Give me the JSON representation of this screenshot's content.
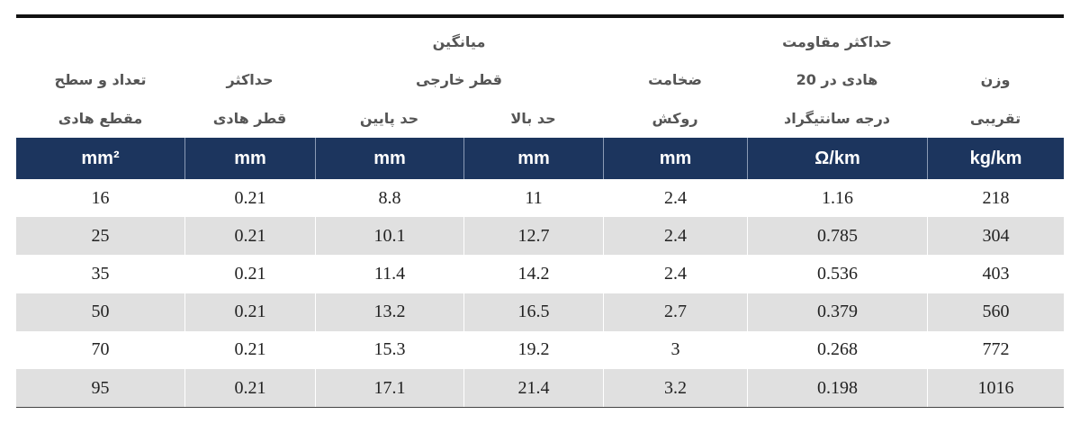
{
  "table": {
    "group": {
      "title": "میانگین",
      "subtitle": "قطر خارجی"
    },
    "columns": [
      {
        "lines": [
          "تعداد و سطح",
          "مقطع هادی"
        ]
      },
      {
        "lines": [
          "حداکثر",
          "قطر هادی"
        ]
      },
      {
        "lines": [
          "حد پایین"
        ]
      },
      {
        "lines": [
          "حد بالا"
        ]
      },
      {
        "lines": [
          "ضخامت",
          "روکش"
        ]
      },
      {
        "lines": [
          "حداکثر مقاومت",
          "هادی در 20",
          "درجه سانتیگراد"
        ]
      },
      {
        "lines": [
          "وزن",
          "تقریبی"
        ]
      }
    ],
    "units": [
      "mm²",
      "mm",
      "mm",
      "mm",
      "mm",
      "Ω/km",
      "kg/km"
    ],
    "rows": [
      [
        16,
        0.21,
        8.8,
        11,
        2.4,
        1.16,
        218
      ],
      [
        25,
        0.21,
        10.1,
        12.7,
        2.4,
        0.785,
        304
      ],
      [
        35,
        0.21,
        11.4,
        14.2,
        2.4,
        0.536,
        403
      ],
      [
        50,
        0.21,
        13.2,
        16.5,
        2.7,
        0.379,
        560
      ],
      [
        70,
        0.21,
        15.3,
        19.2,
        3,
        0.268,
        772
      ],
      [
        95,
        0.21,
        17.1,
        21.4,
        3.2,
        0.198,
        1016
      ]
    ]
  }
}
